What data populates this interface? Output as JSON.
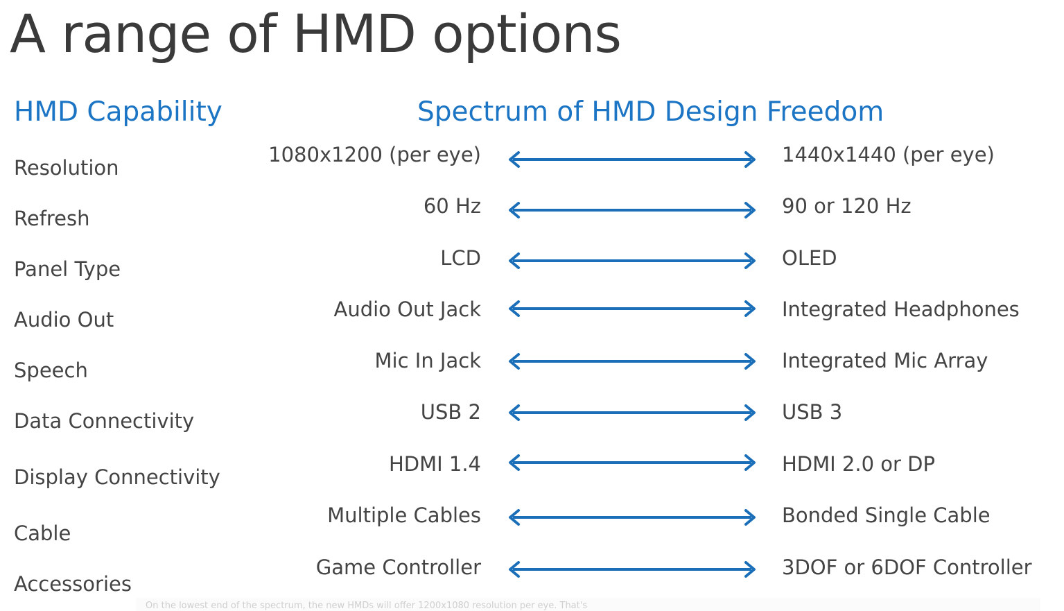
{
  "title": "A range of HMD options",
  "capability_header": "HMD Capability",
  "spectrum_header": "Spectrum of HMD Design Freedom",
  "rows": [
    {
      "capability": "Resolution",
      "low": "1080x1200 (per eye)",
      "high": "1440x1440 (per eye)"
    },
    {
      "capability": "Refresh",
      "low": "60 Hz",
      "high": "90 or 120 Hz"
    },
    {
      "capability": "Panel Type",
      "low": "LCD",
      "high": "OLED"
    },
    {
      "capability": "Audio Out",
      "low": "Audio Out Jack",
      "high": "Integrated Headphones"
    },
    {
      "capability": "Speech",
      "low": "Mic In Jack",
      "high": "Integrated Mic Array"
    },
    {
      "capability": "Data Connectivity",
      "low": "USB 2",
      "high": "USB 3"
    },
    {
      "capability": "Display Connectivity",
      "low": "HDMI 1.4",
      "high": "HDMI 2.0 or DP"
    },
    {
      "capability": "Cable",
      "low": "Multiple Cables",
      "high": "Bonded Single Cable"
    },
    {
      "capability": "Accessories",
      "low": "Game Controller",
      "high": "3DOF or 6DOF Controller"
    }
  ],
  "caption": "On the lowest end of the spectrum, the new HMDs will offer 1200x1080 resolution per eye. That's",
  "colors": {
    "accent": "#1b75c4",
    "arrow": "#1a6fb8",
    "text": "#444444",
    "title": "#3a3a3a"
  }
}
